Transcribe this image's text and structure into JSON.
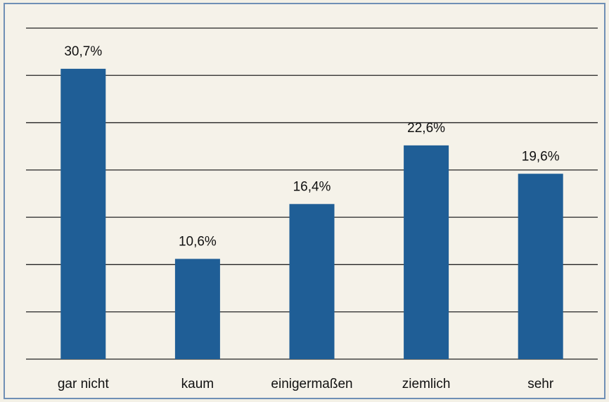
{
  "chart_data": {
    "type": "bar",
    "categories": [
      "gar nicht",
      "kaum",
      "einigermaßen",
      "ziemlich",
      "sehr"
    ],
    "values": [
      30.7,
      10.6,
      16.4,
      22.6,
      19.6
    ],
    "value_labels": [
      "30,7%",
      "10,6%",
      "16,4%",
      "22,6%",
      "19,6%"
    ],
    "color": "#1f5e96",
    "ylim": [
      0,
      35
    ],
    "yticks": [
      0,
      5,
      10,
      15,
      20,
      25,
      30,
      35
    ],
    "grid": true
  }
}
